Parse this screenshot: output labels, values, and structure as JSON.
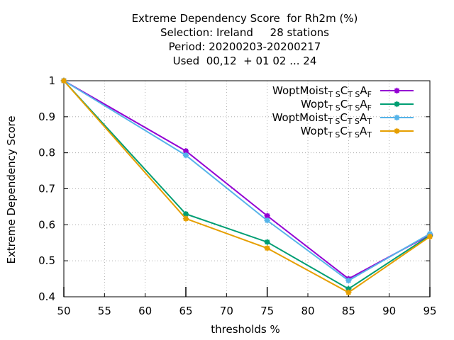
{
  "chart_data": {
    "type": "line",
    "title": [
      "Extreme Dependency Score  for Rh2m (%)",
      "Selection: Ireland     28 stations",
      "Period: 20200203-20200217",
      "Used  00,12  + 01 02 ... 24"
    ],
    "xlabel": "thresholds %",
    "ylabel": "Extreme Dependency Score",
    "x": [
      50,
      65,
      75,
      85,
      95
    ],
    "xlim": [
      50,
      95
    ],
    "ylim": [
      0.4,
      1.0
    ],
    "xticks": [
      50,
      55,
      60,
      65,
      70,
      75,
      80,
      85,
      90,
      95
    ],
    "yticks": [
      "0.4",
      "0.5",
      "0.6",
      "0.7",
      "0.8",
      "0.9",
      "1"
    ],
    "grid": true,
    "legend_position": "top-right",
    "series": [
      {
        "name": "WoptMoist",
        "sub1": "T S",
        "mid1": "C",
        "sub2": "T S",
        "mid2": "A",
        "sub3": "F",
        "color": "#9400d3",
        "values": [
          1.0,
          0.805,
          0.625,
          0.45,
          0.572
        ]
      },
      {
        "name": "Wopt",
        "sub1": "T S",
        "mid1": "C",
        "sub2": "T S",
        "mid2": "A",
        "sub3": "F",
        "color": "#009e73",
        "values": [
          1.0,
          0.63,
          0.552,
          0.422,
          0.57
        ]
      },
      {
        "name": "WoptMoist",
        "sub1": "T S",
        "mid1": "C",
        "sub2": "T S",
        "mid2": "A",
        "sub3": "T",
        "color": "#56b4e9",
        "values": [
          1.0,
          0.793,
          0.612,
          0.445,
          0.575
        ]
      },
      {
        "name": "Wopt",
        "sub1": "T S",
        "mid1": "C",
        "sub2": "T S",
        "mid2": "A",
        "sub3": "T",
        "color": "#e69f00",
        "values": [
          1.0,
          0.617,
          0.535,
          0.412,
          0.567
        ]
      }
    ]
  }
}
